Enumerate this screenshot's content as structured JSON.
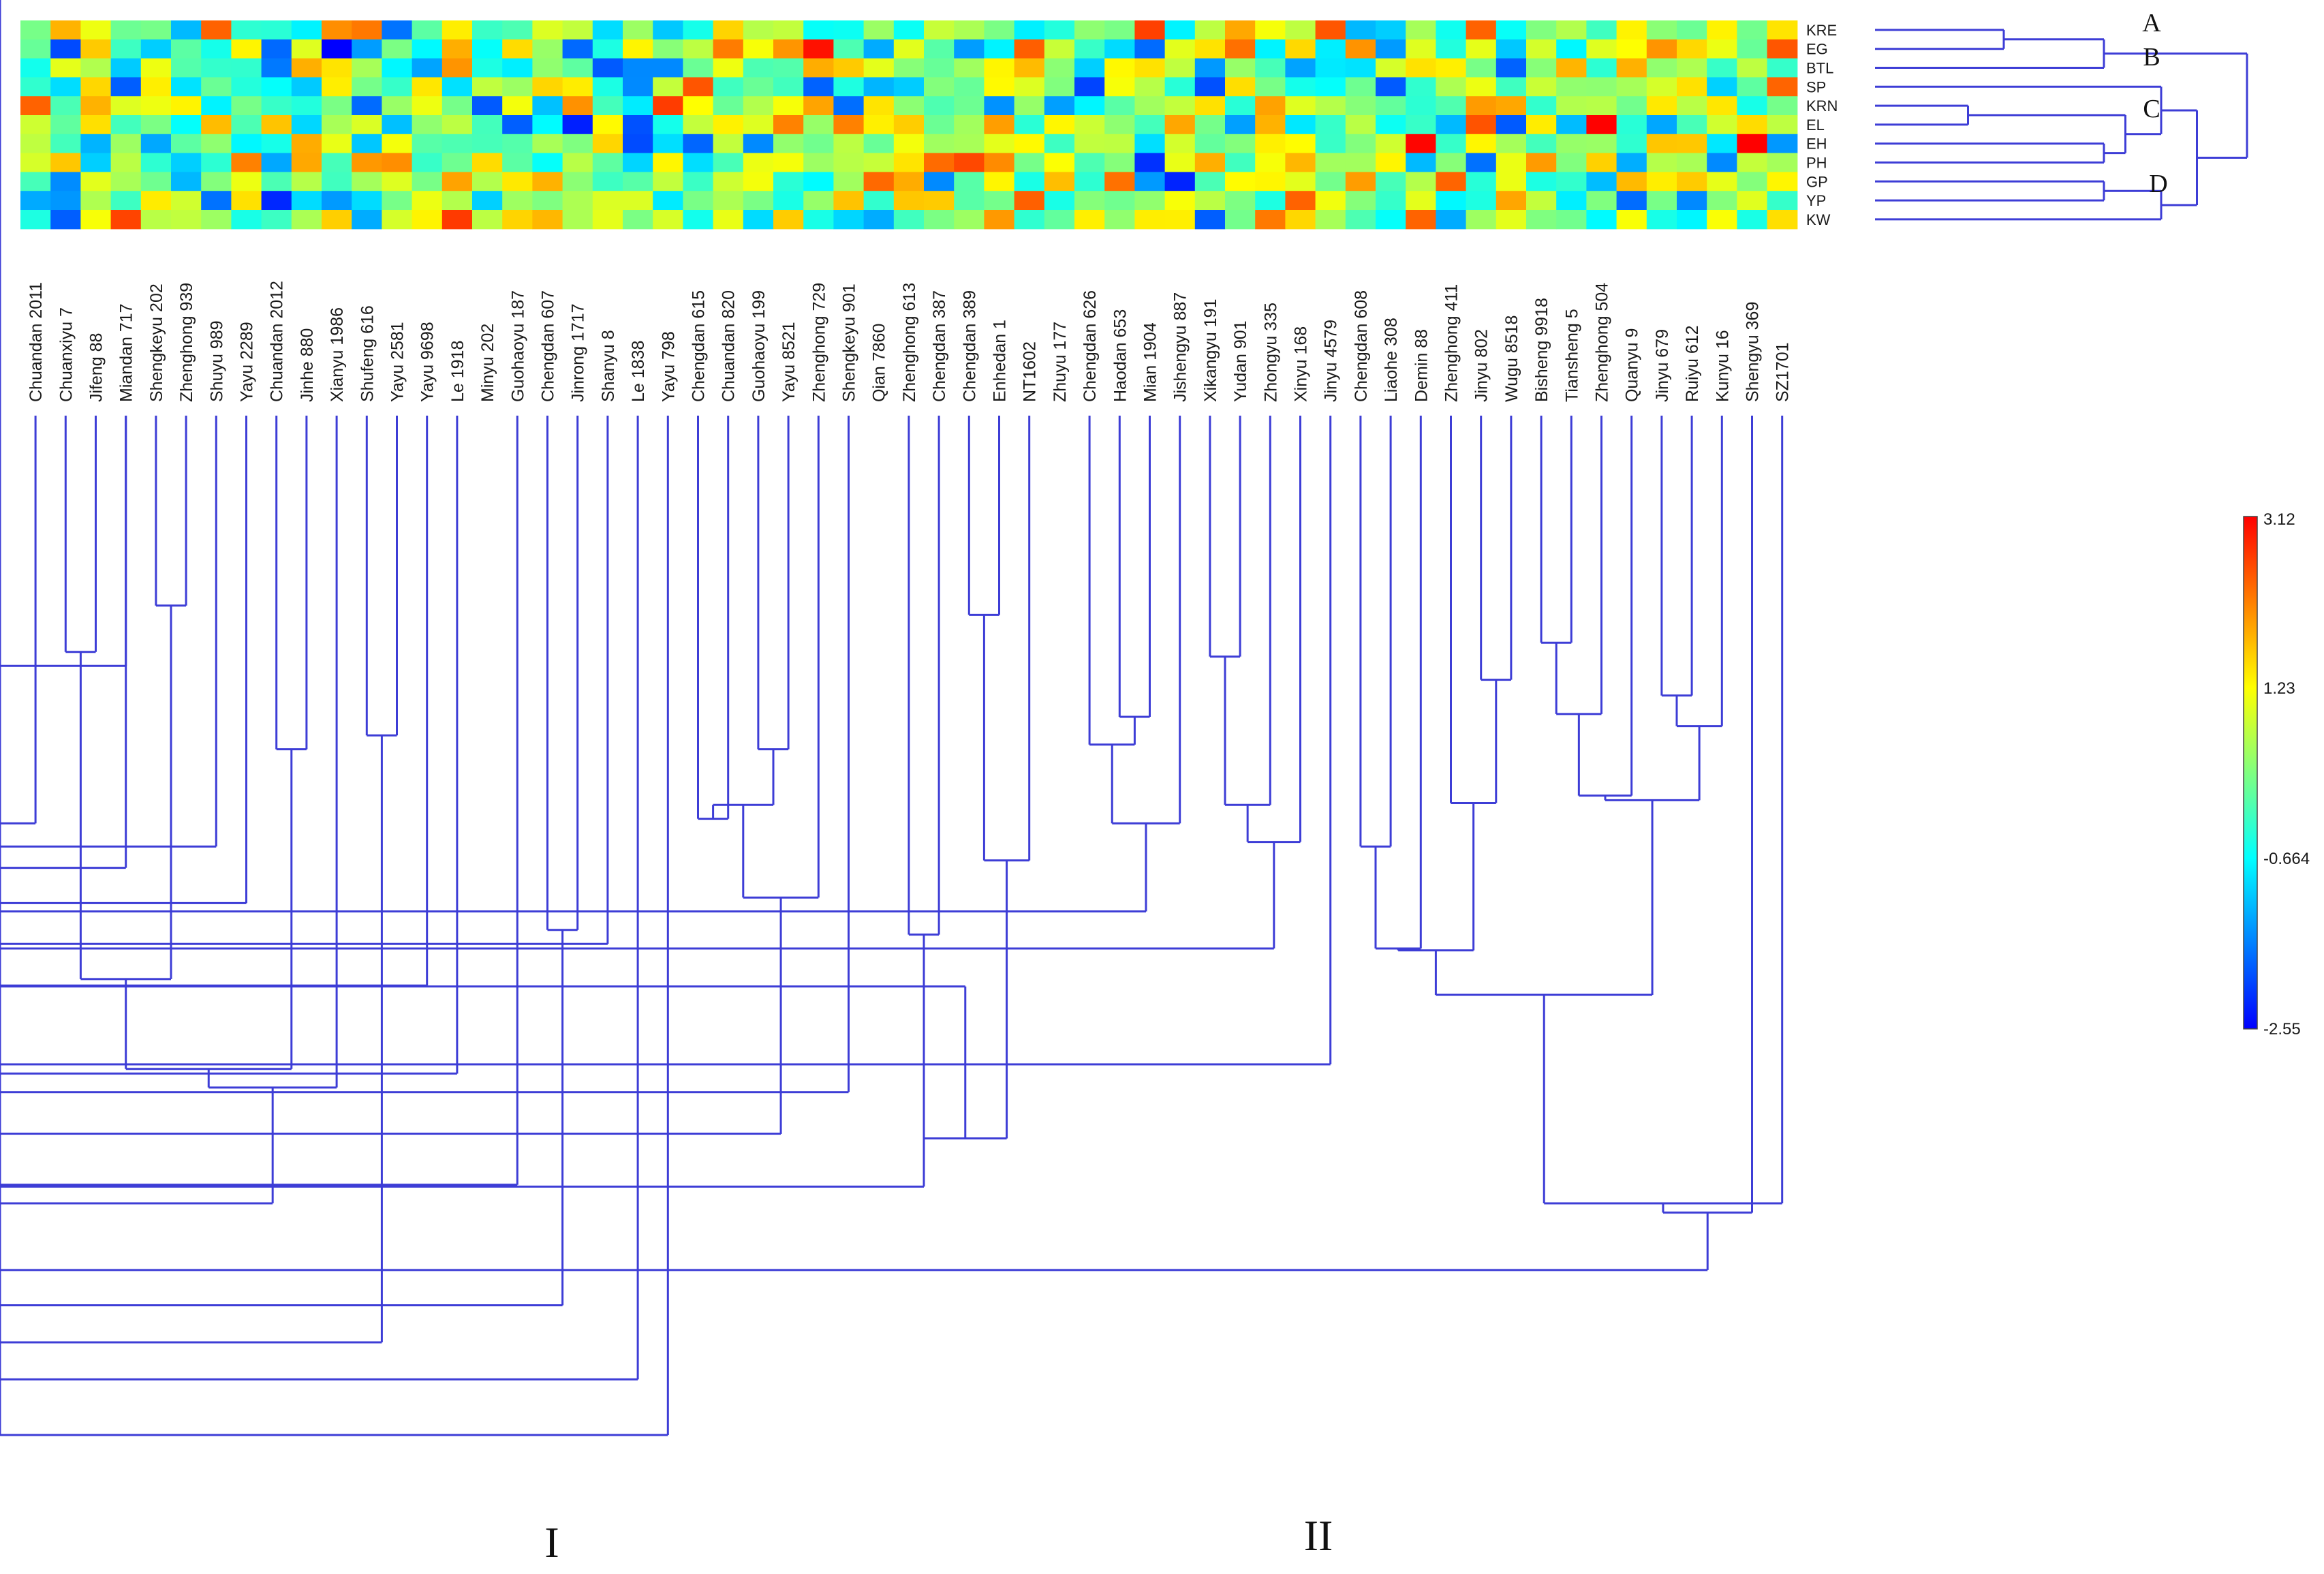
{
  "chart_data": {
    "type": "heatmap",
    "title": "",
    "cultivars": [
      "Chuandan 2011",
      "Chuanxiyu 7",
      "Jifeng 88",
      "Miandan 717",
      "Shengkeyu 202",
      "Zhenghong 939",
      "Shuyu 989",
      "Yayu 2289",
      "Chuandan 2012",
      "Jinhe 880",
      "Xianyu 1986",
      "Shufeng 616",
      "Yayu 2581",
      "Yayu 9698",
      "Le 1918",
      "Minyu 202",
      "Guohaoyu 187",
      "Chengdan 607",
      "Jinrong 1717",
      "Shanyu 8",
      "Le 1838",
      "Yayu 798",
      "Chengdan 615",
      "Chuandan 820",
      "Guohaoyu 199",
      "Yayu 8521",
      "Zhenghong 729",
      "Shengkeyu 901",
      "Qian 7860",
      "Zhenghong 613",
      "Chengdan 387",
      "Chengdan 389",
      "Enhedan 1",
      "NT1602",
      "Zhuyu 177",
      "Chengdan 626",
      "Haodan 653",
      "Mian 1904",
      "Jishengyu 887",
      "Xikangyu 191",
      "Yudan 901",
      "Zhongyu 335",
      "Xinyu 168",
      "Jinyu 4579",
      "Chengdan 608",
      "Liaohe 308",
      "Demin 88",
      "Zhenghong 411",
      "Jinyu 802",
      "Wugu 8518",
      "Bisheng 9918",
      "Tiansheng 5",
      "Zhenghong 504",
      "Quanyu 9",
      "Jinyu 679",
      "Ruiyu 612",
      "Kunyu 16",
      "Shengyu 369",
      "SZ1701"
    ],
    "traits": [
      "KRE",
      "EG",
      "BTL",
      "SP",
      "KRN",
      "EL",
      "EH",
      "PH",
      "GP",
      "YP",
      "KW"
    ],
    "trait_cluster_labels": [
      "A",
      "B",
      "C",
      "D"
    ],
    "cultivar_cluster_labels": [
      "I",
      "II"
    ],
    "colorscale": {
      "min": -2.55,
      "max": 3.12,
      "tick_labels": [
        "3.12",
        "1.23",
        "-0.664",
        "-2.55"
      ],
      "colors": [
        "#0000ff",
        "#00ffff",
        "#ffff00",
        "#ff0000"
      ]
    },
    "cultivar_tree": [
      [
        1,
        2,
        0.605
      ],
      [
        3,
        -2,
        0.62
      ],
      [
        0,
        -3,
        0.79
      ],
      [
        -4,
        3,
        0.838
      ],
      [
        4,
        5,
        0.555
      ],
      [
        -6,
        6,
        0.815
      ],
      [
        -7,
        7,
        0.876
      ],
      [
        -1,
        -5,
        0.958
      ],
      [
        8,
        9,
        0.71
      ],
      [
        -8,
        -9,
        1.055
      ],
      [
        -10,
        10,
        1.075
      ],
      [
        11,
        12,
        0.695
      ],
      [
        -13,
        13,
        0.965
      ],
      [
        -11,
        -14,
        1.2
      ],
      [
        -15,
        14,
        1.06
      ],
      [
        -16,
        -15,
        1.25
      ],
      [
        17,
        18,
        0.905
      ],
      [
        19,
        -18,
        0.92
      ],
      [
        16,
        -19,
        1.18
      ],
      [
        -17,
        -20,
        1.31
      ],
      [
        20,
        -21,
        1.39
      ],
      [
        -22,
        21,
        1.45
      ],
      [
        22,
        23,
        0.785
      ],
      [
        24,
        25,
        0.71
      ],
      [
        -23,
        -24,
        0.77
      ],
      [
        26,
        -25,
        0.87
      ],
      [
        27,
        -27,
        1.08
      ],
      [
        29,
        30,
        0.91
      ],
      [
        31,
        32,
        0.565
      ],
      [
        33,
        -29,
        0.83
      ],
      [
        -28,
        -30,
        1.13
      ],
      [
        36,
        37,
        0.675
      ],
      [
        35,
        -32,
        0.705
      ],
      [
        -33,
        38,
        0.79
      ],
      [
        -34,
        -35,
        0.885
      ],
      [
        39,
        40,
        0.61
      ],
      [
        41,
        -36,
        0.77
      ],
      [
        42,
        -37,
        0.81
      ],
      [
        -38,
        -39,
        0.925
      ],
      [
        -31,
        -40,
        0.966
      ],
      [
        -41,
        43,
        1.05
      ],
      [
        -26,
        -42,
        1.125
      ],
      [
        -43,
        -28,
        1.182
      ],
      [
        44,
        45,
        0.815
      ],
      [
        46,
        -44,
        0.925
      ],
      [
        48,
        49,
        0.635
      ],
      [
        47,
        -46,
        0.768
      ],
      [
        -45,
        -47,
        0.927
      ],
      [
        50,
        51,
        0.595
      ],
      [
        -49,
        52,
        0.672
      ],
      [
        -50,
        53,
        0.76
      ],
      [
        54,
        55,
        0.652
      ],
      [
        56,
        -52,
        0.685
      ],
      [
        -51,
        -53,
        0.765
      ],
      [
        -48,
        -54,
        0.975
      ],
      [
        -55,
        58,
        1.2
      ],
      [
        57,
        -56,
        1.21
      ],
      [
        -57,
        -58,
        1.272
      ],
      [
        -12,
        -59,
        1.35
      ]
    ],
    "trait_tree": [
      [
        0,
        1,
        0.38
      ],
      [
        2,
        -1,
        0.52
      ],
      [
        4,
        5,
        0.33
      ],
      [
        6,
        7,
        0.52
      ],
      [
        -3,
        -4,
        0.55
      ],
      [
        3,
        -5,
        0.6
      ],
      [
        8,
        9,
        0.52
      ],
      [
        10,
        -7,
        0.6
      ],
      [
        -6,
        -8,
        0.65
      ],
      [
        -2,
        -9,
        0.72
      ]
    ]
  }
}
